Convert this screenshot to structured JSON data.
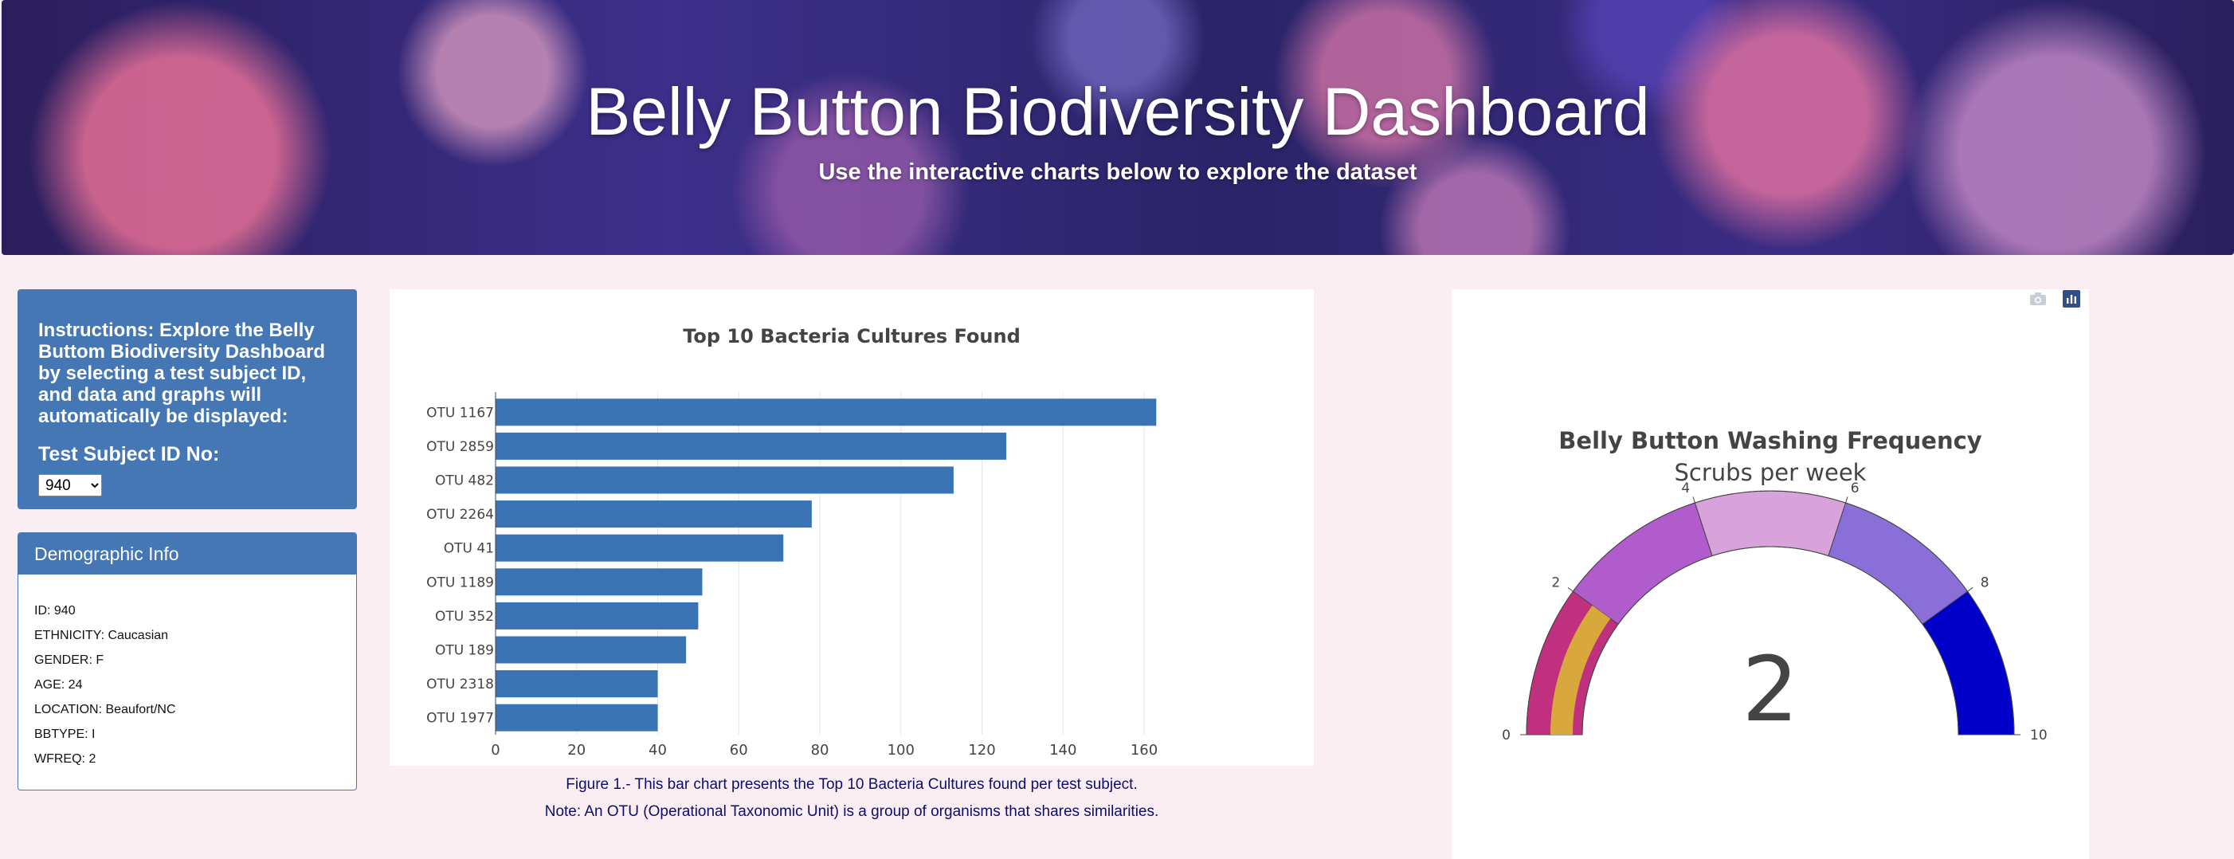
{
  "header": {
    "title": "Belly Button Biodiversity Dashboard",
    "subtitle": "Use the interactive charts below to explore the dataset"
  },
  "instructions": {
    "label_bold": "Instructions:",
    "text": " Explore the Belly Buttom Biodiversity Dashboard by selecting a test subject ID, and data and graphs will automatically be displayed:",
    "subject_label": "Test Subject ID No:",
    "selected_id": "940"
  },
  "demographic": {
    "title": "Demographic Info",
    "lines": [
      "ID: 940",
      "ETHNICITY: Caucasian",
      "GENDER: F",
      "AGE: 24",
      "LOCATION: Beaufort/NC",
      "BBTYPE: I",
      "WFREQ: 2"
    ]
  },
  "chart_data": [
    {
      "type": "bar",
      "orientation": "horizontal",
      "title": "Top 10 Bacteria Cultures Found",
      "categories": [
        "OTU 1167",
        "OTU 2859",
        "OTU 482",
        "OTU 2264",
        "OTU 41",
        "OTU 1189",
        "OTU 352",
        "OTU 189",
        "OTU 2318",
        "OTU 1977"
      ],
      "values": [
        163,
        126,
        113,
        78,
        71,
        51,
        50,
        47,
        40,
        40
      ],
      "xticks": [
        0,
        20,
        40,
        60,
        80,
        100,
        120,
        140,
        160
      ],
      "xlim": [
        0,
        171
      ],
      "color": "#3a73b3",
      "xlabel": "",
      "ylabel": ""
    },
    {
      "type": "gauge",
      "title": "Belly Button Washing Frequency",
      "subtitle": "Scrubs per week",
      "value": 2,
      "range": [
        0,
        10
      ],
      "ticks": [
        0,
        2,
        4,
        6,
        8,
        10
      ],
      "steps": [
        {
          "range": [
            0,
            2
          ],
          "color": "#c1307f"
        },
        {
          "range": [
            2,
            4
          ],
          "color": "#b05ccc"
        },
        {
          "range": [
            4,
            6
          ],
          "color": "#d8a3da"
        },
        {
          "range": [
            6,
            8
          ],
          "color": "#8b6fd8"
        },
        {
          "range": [
            8,
            10
          ],
          "color": "#0000c9"
        }
      ],
      "bar_color": "#d8a83c"
    }
  ],
  "captions": {
    "line1": "Figure 1.- This bar chart presents the Top 10 Bacteria Cultures found per test subject.",
    "line2": "Note: An OTU (Operational Taxonomic Unit) is a group of organisms that shares similarities."
  },
  "toolbar": {
    "camera_icon": "camera-icon",
    "plotly_icon": "plotly-logo-icon"
  },
  "colors": {
    "accent": "#4577b4",
    "background": "#fbeef2",
    "caption": "#0b0e6b"
  }
}
